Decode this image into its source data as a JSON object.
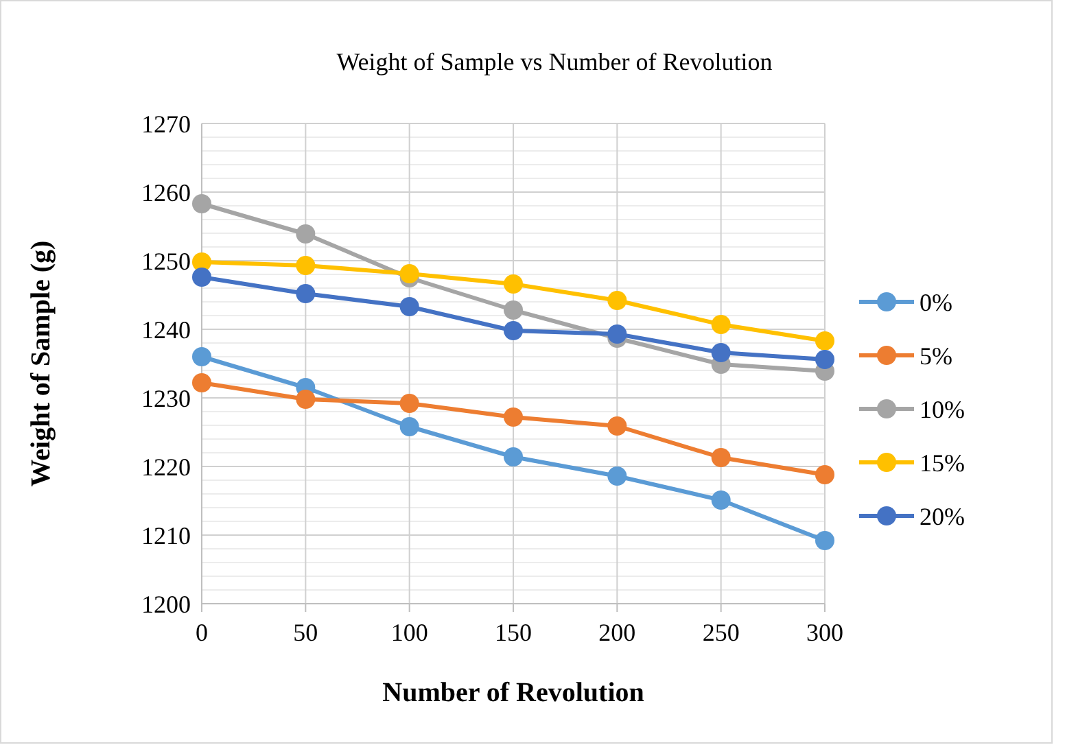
{
  "chart_data": {
    "type": "line",
    "title": "Weight of Sample vs Number of Revolution",
    "xlabel": "Number of Revolution",
    "ylabel": "Weight of Sample (g)",
    "x": [
      0,
      50,
      100,
      150,
      200,
      250,
      300
    ],
    "series": [
      {
        "name": "0%",
        "color": "#5b9bd5",
        "values": [
          1236,
          1231.5,
          1225.8,
          1221.4,
          1218.6,
          1215.1,
          1209.2
        ]
      },
      {
        "name": "5%",
        "color": "#ed7d31",
        "values": [
          1232.2,
          1229.8,
          1229.2,
          1227.2,
          1225.9,
          1221.3,
          1218.8
        ]
      },
      {
        "name": "10%",
        "color": "#a5a5a5",
        "values": [
          1258.3,
          1253.9,
          1247.5,
          1242.8,
          1238.7,
          1234.9,
          1233.9
        ]
      },
      {
        "name": "15%",
        "color": "#ffc000",
        "values": [
          1249.8,
          1249.3,
          1248.1,
          1246.6,
          1244.2,
          1240.7,
          1238.3
        ]
      },
      {
        "name": "20%",
        "color": "#4472c4",
        "values": [
          1247.6,
          1245.2,
          1243.3,
          1239.8,
          1239.3,
          1236.6,
          1235.6
        ]
      }
    ],
    "xlim": [
      0,
      300
    ],
    "xticks": [
      0,
      50,
      100,
      150,
      200,
      250,
      300
    ],
    "ylim": [
      1200,
      1270
    ],
    "yticks": [
      1200,
      {
        "value": 1202,
        "label": null
      },
      {
        "value": 1204,
        "label": null
      },
      {
        "value": 1206,
        "label": null
      },
      {
        "value": 1208,
        "label": null
      },
      1210,
      {
        "value": 1212,
        "label": null
      },
      {
        "value": 1214,
        "label": null
      },
      {
        "value": 1216,
        "label": null
      },
      {
        "value": 1218,
        "label": null
      },
      1220,
      {
        "value": 1222,
        "label": null
      },
      {
        "value": 1224,
        "label": null
      },
      {
        "value": 1226,
        "label": null
      },
      {
        "value": 1228,
        "label": null
      },
      1230,
      {
        "value": 1232,
        "label": null
      },
      {
        "value": 1234,
        "label": null
      },
      {
        "value": 1236,
        "label": null
      },
      {
        "value": 1238,
        "label": null
      },
      1240,
      {
        "value": 1242,
        "label": null
      },
      {
        "value": 1244,
        "label": null
      },
      {
        "value": 1246,
        "label": null
      },
      {
        "value": 1248,
        "label": null
      },
      1250,
      {
        "value": 1252,
        "label": null
      },
      {
        "value": 1254,
        "label": null
      },
      {
        "value": 1256,
        "label": null
      },
      {
        "value": 1258,
        "label": null
      },
      1260,
      {
        "value": 1262,
        "label": null
      },
      {
        "value": 1264,
        "label": null
      },
      {
        "value": 1266,
        "label": null
      },
      {
        "value": 1268,
        "label": null
      },
      1270
    ],
    "grid": true,
    "legend": "right",
    "marker": "circle",
    "line_style": "solid"
  }
}
